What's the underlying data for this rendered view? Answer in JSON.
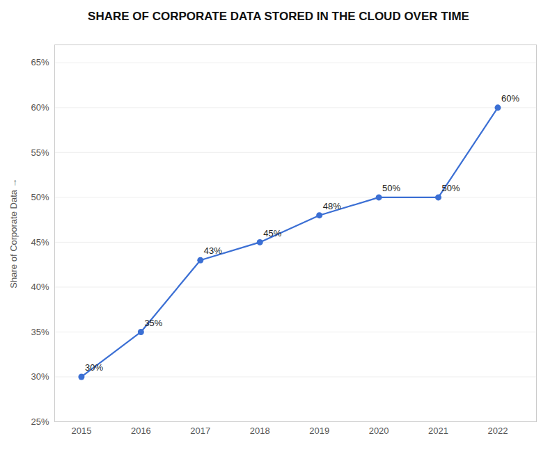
{
  "chart_data": {
    "type": "line",
    "title": "SHARE OF CORPORATE DATA STORED IN THE CLOUD OVER TIME",
    "ylabel": "Share of Corporate Data",
    "x": [
      2015,
      2016,
      2017,
      2018,
      2019,
      2020,
      2021,
      2022
    ],
    "values": [
      30,
      35,
      43,
      45,
      48,
      50,
      50,
      60
    ],
    "value_labels": [
      "30%",
      "35%",
      "43%",
      "45%",
      "48%",
      "50%",
      "50%",
      "60%"
    ],
    "data_labels": true,
    "color": "#3b6fd4",
    "marker": "circle",
    "xlim": [
      2014.55,
      2022.65
    ],
    "xticks": [
      2015,
      2016,
      2017,
      2018,
      2019,
      2020,
      2021,
      2022
    ],
    "ylim": [
      25,
      67
    ],
    "yticks": [
      {
        "value": 25,
        "label": "25%"
      },
      {
        "value": 30,
        "label": "30%"
      },
      {
        "value": 35,
        "label": "35%"
      },
      {
        "value": 40,
        "label": "40%"
      },
      {
        "value": 45,
        "label": "45%"
      },
      {
        "value": 50,
        "label": "50%"
      },
      {
        "value": 55,
        "label": "55%"
      },
      {
        "value": 60,
        "label": "60%"
      },
      {
        "value": 65,
        "label": "65%"
      }
    ],
    "grid": "y"
  }
}
